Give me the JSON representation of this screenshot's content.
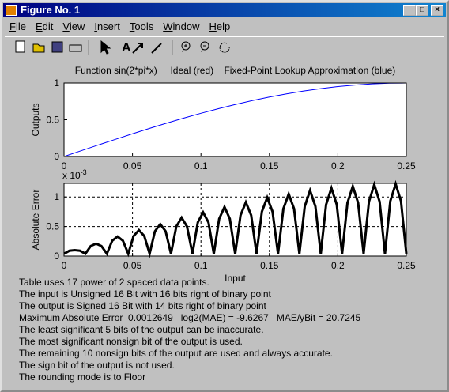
{
  "window": {
    "title": "Figure No. 1",
    "menu": [
      "File",
      "Edit",
      "View",
      "Insert",
      "Tools",
      "Window",
      "Help"
    ]
  },
  "chart_data": [
    {
      "type": "line",
      "title": "Function sin(2*pi*x)     Ideal (red)    Fixed-Point Lookup Approximation (blue)",
      "ylabel": "Outputs",
      "color": "#0000ff",
      "x": [
        0,
        0.0125,
        0.025,
        0.0375,
        0.05,
        0.0625,
        0.075,
        0.0875,
        0.1,
        0.1125,
        0.125,
        0.1375,
        0.15,
        0.1625,
        0.175,
        0.1875,
        0.2,
        0.2125,
        0.225,
        0.2375,
        0.25
      ],
      "values": [
        0,
        0.0785,
        0.1564,
        0.2334,
        0.309,
        0.3827,
        0.454,
        0.5225,
        0.5878,
        0.6494,
        0.7071,
        0.7604,
        0.809,
        0.8526,
        0.891,
        0.9239,
        0.9511,
        0.9724,
        0.9877,
        0.9969,
        1
      ],
      "xlim": [
        0,
        0.25
      ],
      "xticks": [
        0,
        0.05,
        0.1,
        0.15,
        0.2,
        0.25
      ],
      "ylim": [
        0,
        1
      ],
      "yticks": [
        0,
        0.5,
        1
      ],
      "grid": false
    },
    {
      "type": "line",
      "ylabel": "Absolute Error",
      "xlabel": "Input",
      "y_multiplier": "x 10",
      "y_multiplier_exp": "-3",
      "color": "#000000",
      "x": [
        0,
        0.0039,
        0.0078,
        0.0117,
        0.0156,
        0.0195,
        0.0234,
        0.0273,
        0.0313,
        0.0352,
        0.0391,
        0.043,
        0.0469,
        0.0508,
        0.0547,
        0.0586,
        0.0625,
        0.0664,
        0.0703,
        0.0742,
        0.0781,
        0.082,
        0.0859,
        0.0898,
        0.0938,
        0.0977,
        0.1016,
        0.1055,
        0.1094,
        0.1133,
        0.1172,
        0.1211,
        0.125,
        0.1289,
        0.1328,
        0.1367,
        0.1406,
        0.1445,
        0.1484,
        0.1523,
        0.1563,
        0.1602,
        0.1641,
        0.168,
        0.1719,
        0.1758,
        0.1797,
        0.1836,
        0.1875,
        0.1914,
        0.1953,
        0.1992,
        0.2031,
        0.207,
        0.2109,
        0.2148,
        0.2188,
        0.2227,
        0.2266,
        0.2305,
        0.2344,
        0.2383,
        0.2422,
        0.2461,
        0.25
      ],
      "values": [
        0.04,
        0.09,
        0.1,
        0.09,
        0.04,
        0.17,
        0.21,
        0.17,
        0.04,
        0.26,
        0.33,
        0.26,
        0.04,
        0.34,
        0.44,
        0.34,
        0.04,
        0.42,
        0.54,
        0.42,
        0.04,
        0.5,
        0.65,
        0.5,
        0.04,
        0.57,
        0.74,
        0.57,
        0.04,
        0.63,
        0.83,
        0.63,
        0.04,
        0.69,
        0.91,
        0.69,
        0.04,
        0.75,
        0.99,
        0.75,
        0.04,
        0.8,
        1.05,
        0.8,
        0.04,
        0.84,
        1.11,
        0.84,
        0.04,
        0.87,
        1.15,
        0.87,
        0.04,
        0.9,
        1.18,
        0.9,
        0.04,
        0.92,
        1.21,
        0.92,
        0.04,
        0.93,
        1.22,
        0.93,
        0.04
      ],
      "xlim": [
        0,
        0.25
      ],
      "xticks": [
        0,
        0.05,
        0.1,
        0.15,
        0.2,
        0.25
      ],
      "ylim": [
        0,
        1.23
      ],
      "yticks": [
        0,
        0.5,
        1
      ],
      "grid": true
    }
  ],
  "notes": [
    "Table uses 17 power of 2 spaced data points.",
    "The input is Unsigned 16 Bit with 16 bits right of binary point",
    "The output is Signed 16 Bit with 14 bits right of binary point",
    "Maximum Absolute Error  0.0012649   log2(MAE) = -9.6267   MAE/yBit = 20.7245",
    "The least significant 5 bits of the output can be inaccurate.",
    "The most significant nonsign bit of the output is used.",
    "The remaining 10 nonsign bits of the output are used and always accurate.",
    "The sign bit of the output is not used.",
    "The rounding mode is to Floor"
  ]
}
